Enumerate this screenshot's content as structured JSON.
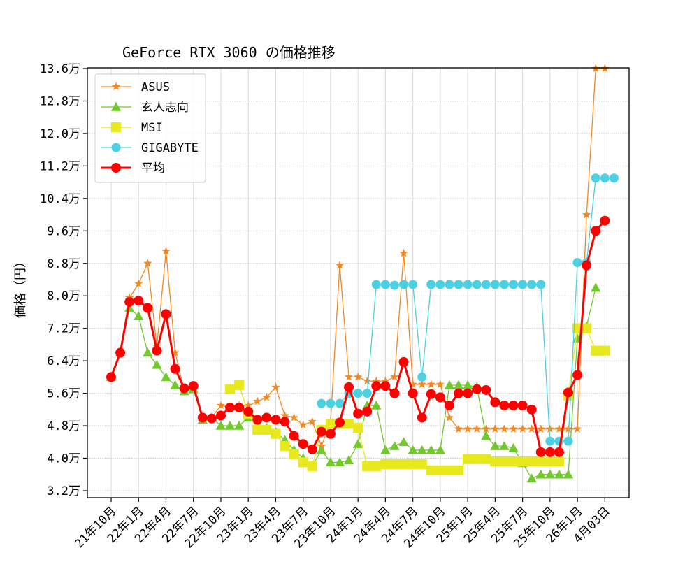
{
  "chart_data": {
    "type": "line",
    "title": "GeForce RTX 3060 の価格推移",
    "xlabel": "",
    "ylabel": "価格（円）",
    "ylim": [
      3.2,
      13.6
    ],
    "y_unit_suffix": "万",
    "yticks": [
      3.2,
      4.0,
      4.8,
      5.6,
      6.4,
      7.2,
      8.0,
      8.8,
      9.6,
      10.4,
      11.2,
      12.0,
      12.8,
      13.6
    ],
    "ytick_labels": [
      "3.2万",
      "4.0万",
      "4.8万",
      "5.6万",
      "6.4万",
      "7.2万",
      "8.0万",
      "8.8万",
      "9.6万",
      "10.4万",
      "11.2万",
      "12.0万",
      "12.8万",
      "13.6万"
    ],
    "xticks_index": [
      0,
      3,
      6,
      9,
      12,
      15,
      18,
      21,
      24,
      27,
      30,
      33,
      36,
      39,
      42,
      45,
      48,
      51,
      54
    ],
    "xtick_labels": [
      "21年10月",
      "22年1月",
      "22年4月",
      "22年7月",
      "22年10月",
      "23年1月",
      "23年4月",
      "23年7月",
      "23年10月",
      "24年1月",
      "24年4月",
      "24年7月",
      "24年10月",
      "25年1月",
      "25年4月",
      "25年7月",
      "25年10月",
      "26年1月",
      "4月03日"
    ],
    "grid": true,
    "legend_position": "upper left",
    "series": [
      {
        "name": "ASUS",
        "color": "#f08a24",
        "marker": "star",
        "linewidth": 1.3,
        "start_index": 0,
        "values": [
          6.0,
          6.6,
          7.95,
          8.3,
          8.8,
          6.75,
          9.1,
          6.6,
          5.65,
          5.75,
          5.0,
          5.0,
          5.3,
          5.25,
          5.3,
          5.3,
          5.4,
          5.5,
          5.75,
          5.05,
          5.0,
          4.82,
          4.9,
          4.3,
          4.9,
          8.75,
          6.0,
          6.0,
          5.9,
          5.9,
          5.9,
          6.0,
          9.05,
          5.82,
          5.82,
          5.82,
          5.82,
          5.0,
          4.72,
          4.72,
          4.72,
          4.72,
          4.72,
          4.72,
          4.72,
          4.72,
          4.72,
          4.72,
          4.72,
          4.72,
          4.72,
          4.72,
          10.0,
          13.6,
          13.6
        ]
      },
      {
        "name": "玄人志向",
        "color": "#72c92d",
        "marker": "triangle",
        "linewidth": 1.3,
        "start_index": 0,
        "values": [
          6.0,
          6.6,
          7.7,
          7.5,
          6.6,
          6.3,
          6.0,
          5.8,
          5.65,
          5.7,
          4.95,
          5.0,
          4.8,
          4.8,
          4.8,
          5.0,
          4.85,
          4.75,
          4.65,
          4.45,
          4.2,
          4.0,
          3.82,
          4.2,
          3.9,
          3.9,
          3.95,
          4.35,
          5.3,
          5.3,
          4.2,
          4.3,
          4.4,
          4.2,
          4.2,
          4.2,
          4.2,
          5.8,
          5.8,
          5.8,
          5.75,
          4.55,
          4.3,
          4.3,
          4.25,
          3.88,
          3.5,
          3.6,
          3.6,
          3.6,
          3.6,
          6.95,
          7.25,
          8.2
        ]
      },
      {
        "name": "MSI",
        "color": "#e8e81f",
        "marker": "square",
        "linewidth": 1.3,
        "start_index": 13,
        "values": [
          5.7,
          5.8,
          5.1,
          4.7,
          4.7,
          4.6,
          4.3,
          4.1,
          3.9,
          3.8,
          4.7,
          4.85,
          4.85,
          4.85,
          4.75,
          3.8,
          3.8,
          3.85,
          3.85,
          3.85,
          3.85,
          3.85,
          3.7,
          3.7,
          3.7,
          3.7,
          3.98,
          3.98,
          3.98,
          3.92,
          3.92,
          3.92,
          3.92,
          3.92,
          3.92,
          3.92,
          3.92,
          5.55,
          7.2,
          7.2,
          6.65,
          6.65
        ]
      },
      {
        "name": "GIGABYTE",
        "color": "#4dd0e1",
        "marker": "circle",
        "linewidth": 1.3,
        "start_index": 23,
        "values": [
          5.35,
          5.35,
          5.35,
          5.6,
          5.6,
          5.6,
          8.28,
          8.28,
          8.26,
          8.28,
          8.28,
          6.0,
          8.28,
          8.28,
          8.28,
          8.28,
          8.28,
          8.28,
          8.28,
          8.28,
          8.28,
          8.28,
          8.28,
          8.28,
          8.28,
          4.42,
          4.42,
          4.42,
          8.82,
          8.82,
          10.9,
          10.9,
          10.9
        ]
      },
      {
        "name": "平均",
        "color": "#ff0000",
        "marker": "circle",
        "linewidth": 3,
        "start_index": 0,
        "values": [
          6.0,
          6.6,
          7.85,
          7.88,
          7.7,
          6.65,
          7.55,
          6.2,
          5.72,
          5.78,
          5.0,
          4.98,
          5.05,
          5.25,
          5.25,
          5.15,
          4.95,
          5.0,
          4.95,
          4.9,
          4.55,
          4.35,
          4.22,
          4.65,
          4.6,
          4.88,
          5.75,
          5.1,
          5.15,
          5.78,
          5.78,
          5.6,
          6.37,
          5.6,
          5.0,
          5.58,
          5.5,
          5.3,
          5.6,
          5.6,
          5.7,
          5.68,
          5.38,
          5.3,
          5.3,
          5.3,
          5.2,
          4.15,
          4.15,
          4.15,
          5.62,
          6.05,
          8.75,
          9.6,
          9.85
        ]
      }
    ]
  }
}
